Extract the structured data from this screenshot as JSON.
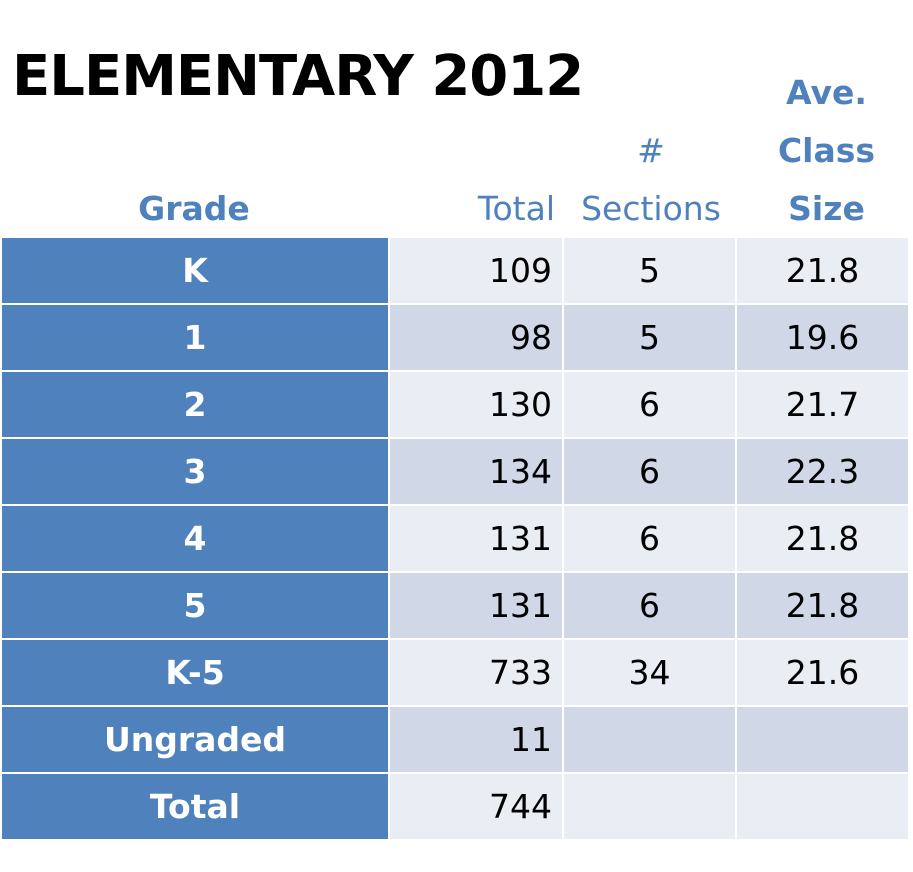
{
  "title": "ELEMENTARY 2012",
  "headers": {
    "grade": "Grade",
    "total": "Total",
    "sections": [
      "#",
      "Sections"
    ],
    "avg_class_size": [
      "Ave.",
      "Class",
      "Size"
    ]
  },
  "rows": [
    {
      "grade": "K",
      "total": "109",
      "sections": "5",
      "avg": "21.8"
    },
    {
      "grade": "1",
      "total": "98",
      "sections": "5",
      "avg": "19.6"
    },
    {
      "grade": "2",
      "total": "130",
      "sections": "6",
      "avg": "21.7"
    },
    {
      "grade": "3",
      "total": "134",
      "sections": "6",
      "avg": "22.3"
    },
    {
      "grade": "4",
      "total": "131",
      "sections": "6",
      "avg": "21.8"
    },
    {
      "grade": "5",
      "total": "131",
      "sections": "6",
      "avg": "21.8"
    },
    {
      "grade": "K-5",
      "total": "733",
      "sections": "34",
      "avg": "21.6"
    },
    {
      "grade": "Ungraded",
      "total": "11",
      "sections": "",
      "avg": ""
    },
    {
      "grade": "Total",
      "total": "744",
      "sections": "",
      "avg": ""
    }
  ],
  "colors": {
    "header_text": "#4f81bd",
    "grade_column": "#4f81bd",
    "row_light": "#e9edf4",
    "row_dark": "#d0d8e8"
  }
}
